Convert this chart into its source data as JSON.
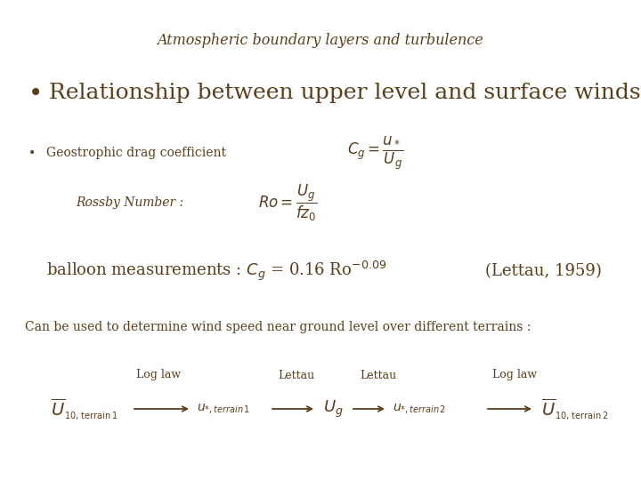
{
  "bg_color": "#ffffff",
  "text_color": "#5a3e1b",
  "title": "Atmospheric boundary layers and turbulence",
  "title_fontsize": 11.5,
  "bullet1_text": "Relationship between upper level and surface winds :",
  "bullet1_fontsize": 18,
  "bullet2_text": "Geostrophic drag coefficient",
  "bullet2_fontsize": 10,
  "rossby_label": "Rossby Number :",
  "balloon_ref": "(Lettau, 1959)",
  "balloon_fontsize": 13,
  "can_text": "Can be used to determine wind speed near ground level over different terrains :",
  "can_fontsize": 10,
  "chain_fontsize": 10,
  "label_fontsize": 9
}
